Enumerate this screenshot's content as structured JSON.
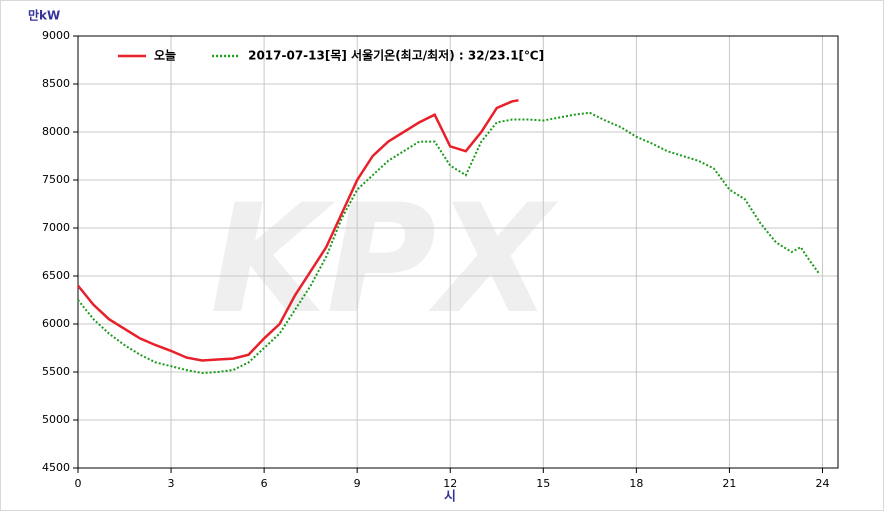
{
  "chart_data": {
    "type": "line",
    "y_label": "만kW",
    "x_label": "시",
    "watermark": "KPX",
    "xlim": [
      0,
      24.5
    ],
    "xticks": [
      0,
      3,
      6,
      9,
      12,
      15,
      18,
      21,
      24
    ],
    "ylim": [
      4500,
      9000
    ],
    "yticks": [
      4500,
      5000,
      5500,
      6000,
      6500,
      7000,
      7500,
      8000,
      8500,
      9000
    ],
    "grid": true,
    "legend": "top-left",
    "series": [
      {
        "name": "오늘",
        "color": "#e8202a",
        "dash": "solid",
        "x": [
          0,
          0.5,
          1,
          1.5,
          2,
          2.5,
          3,
          3.5,
          4,
          4.5,
          5,
          5.5,
          6,
          6.5,
          7,
          7.5,
          8,
          8.5,
          9,
          9.5,
          10,
          10.5,
          11,
          11.5,
          12,
          12.5,
          13,
          13.5,
          14,
          14.2
        ],
        "values": [
          6400,
          6200,
          6050,
          5950,
          5850,
          5780,
          5720,
          5650,
          5620,
          5630,
          5640,
          5680,
          5850,
          6000,
          6300,
          6550,
          6800,
          7150,
          7500,
          7750,
          7900,
          8000,
          8100,
          8180,
          7850,
          7800,
          8000,
          8250,
          8320,
          8330
        ]
      },
      {
        "name": "2017-07-13[목]  서울기온(최고/최저) : 32/23.1[℃]",
        "color": "#1a9a1a",
        "dash": "dotted",
        "x": [
          0,
          0.5,
          1,
          1.5,
          2,
          2.5,
          3,
          3.5,
          4,
          4.5,
          5,
          5.5,
          6,
          6.5,
          7,
          7.5,
          8,
          8.5,
          9,
          9.5,
          10,
          10.5,
          11,
          11.5,
          12,
          12.5,
          13,
          13.5,
          14,
          14.5,
          15,
          15.5,
          16,
          16.5,
          17,
          17.5,
          18,
          18.5,
          19,
          19.5,
          20,
          20.5,
          21,
          21.5,
          22,
          22.5,
          23,
          23.3,
          23.5,
          23.9
        ],
        "values": [
          6250,
          6050,
          5900,
          5780,
          5680,
          5600,
          5560,
          5520,
          5490,
          5500,
          5520,
          5600,
          5750,
          5900,
          6150,
          6400,
          6700,
          7100,
          7400,
          7550,
          7700,
          7800,
          7900,
          7900,
          7650,
          7550,
          7900,
          8100,
          8130,
          8130,
          8120,
          8150,
          8180,
          8200,
          8120,
          8050,
          7950,
          7880,
          7800,
          7750,
          7700,
          7620,
          7400,
          7300,
          7050,
          6850,
          6750,
          6800,
          6700,
          6520
        ]
      }
    ]
  }
}
